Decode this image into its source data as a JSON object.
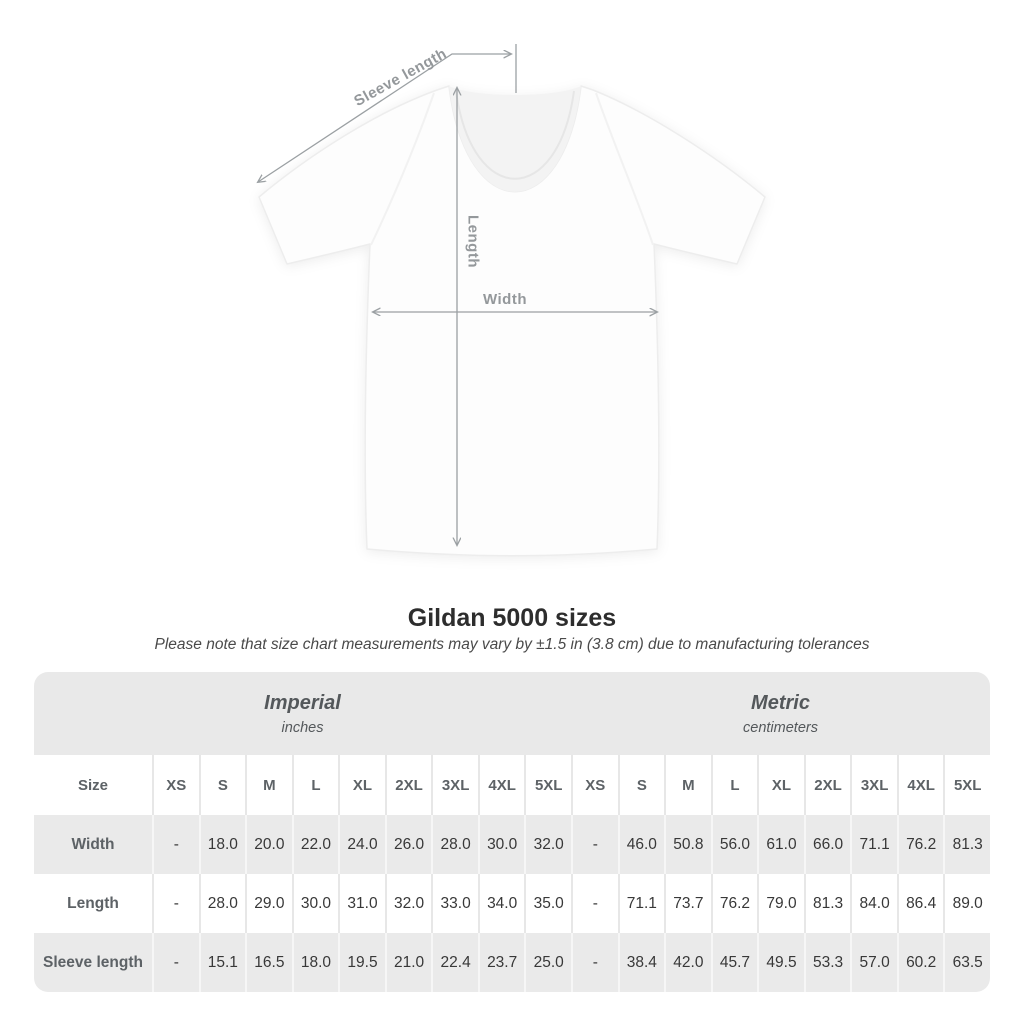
{
  "title": "Gildan 5000 sizes",
  "subtitle": "Please note that size chart measurements may vary by ±1.5 in (3.8 cm) due to manufacturing tolerances",
  "diagram": {
    "sleeve_length_label": "Sleeve length",
    "length_label": "Length",
    "width_label": "Width"
  },
  "colors": {
    "arrow_gray": "#9ba0a3",
    "label_gray": "#94989b",
    "band_gray": "#e9e9e9",
    "stripe_gray": "#eaeaea",
    "header_text": "#5d6266",
    "value_text": "#383838",
    "title_text": "#2d2d2d"
  },
  "chart_data": {
    "type": "table",
    "title": "Gildan 5000 sizes",
    "note": "Please note that size chart measurements may vary by ±1.5 in (3.8 cm) due to manufacturing tolerances",
    "row_header": "Size",
    "sizes": [
      "XS",
      "S",
      "M",
      "L",
      "XL",
      "2XL",
      "3XL",
      "4XL",
      "5XL"
    ],
    "column_groups": [
      {
        "label": "Imperial",
        "sublabel": "inches"
      },
      {
        "label": "Metric",
        "sublabel": "centimeters"
      }
    ],
    "rows": [
      {
        "label": "Width",
        "imperial": [
          "-",
          "18.0",
          "20.0",
          "22.0",
          "24.0",
          "26.0",
          "28.0",
          "30.0",
          "32.0"
        ],
        "metric": [
          "-",
          "46.0",
          "50.8",
          "56.0",
          "61.0",
          "66.0",
          "71.1",
          "76.2",
          "81.3"
        ]
      },
      {
        "label": "Length",
        "imperial": [
          "-",
          "28.0",
          "29.0",
          "30.0",
          "31.0",
          "32.0",
          "33.0",
          "34.0",
          "35.0"
        ],
        "metric": [
          "-",
          "71.1",
          "73.7",
          "76.2",
          "79.0",
          "81.3",
          "84.0",
          "86.4",
          "89.0"
        ]
      },
      {
        "label": "Sleeve length",
        "imperial": [
          "-",
          "15.1",
          "16.5",
          "18.0",
          "19.5",
          "21.0",
          "22.4",
          "23.7",
          "25.0"
        ],
        "metric": [
          "-",
          "38.4",
          "42.0",
          "45.7",
          "49.5",
          "53.3",
          "57.0",
          "60.2",
          "63.5"
        ]
      }
    ]
  }
}
